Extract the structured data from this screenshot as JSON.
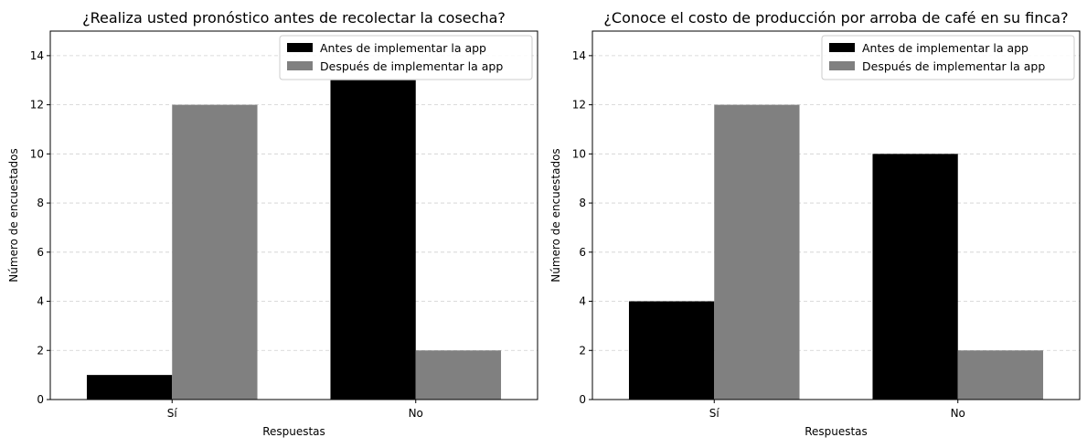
{
  "chart_data": [
    {
      "type": "bar",
      "title": "¿Realiza usted pronóstico antes de recolectar la cosecha?",
      "xlabel": "Respuestas",
      "ylabel": "Número de encuestados",
      "categories": [
        "Sí",
        "No"
      ],
      "series": [
        {
          "name": "Antes de implementar la app",
          "values": [
            1,
            13
          ],
          "color": "#000000"
        },
        {
          "name": "Después de implementar la app",
          "values": [
            12,
            2
          ],
          "color": "#808080"
        }
      ],
      "ylim": [
        0,
        15
      ],
      "yticks": [
        0,
        2,
        4,
        6,
        8,
        10,
        12,
        14
      ],
      "grid": "y-dashed",
      "legend": "top-right"
    },
    {
      "type": "bar",
      "title": "¿Conoce el costo de producción por arroba de café en su finca?",
      "xlabel": "Respuestas",
      "ylabel": "Número de encuestados",
      "categories": [
        "Sí",
        "No"
      ],
      "series": [
        {
          "name": "Antes de implementar la app",
          "values": [
            4,
            10
          ],
          "color": "#000000"
        },
        {
          "name": "Después de implementar la app",
          "values": [
            12,
            2
          ],
          "color": "#808080"
        }
      ],
      "ylim": [
        0,
        15
      ],
      "yticks": [
        0,
        2,
        4,
        6,
        8,
        10,
        12,
        14
      ],
      "grid": "y-dashed",
      "legend": "top-right"
    }
  ]
}
